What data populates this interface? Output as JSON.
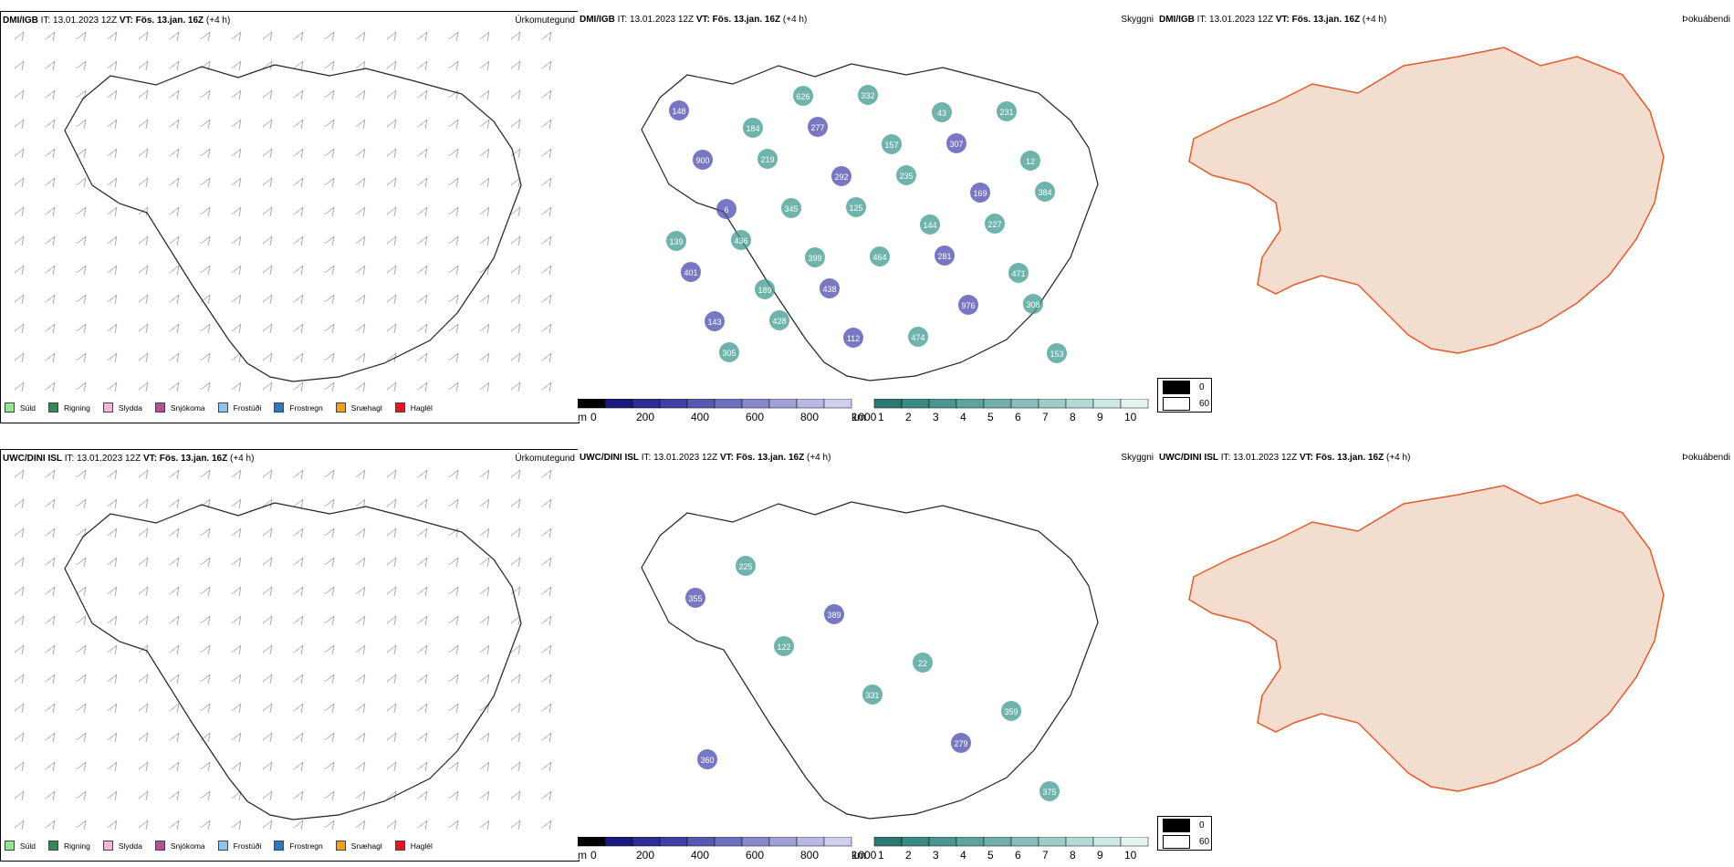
{
  "rows": [
    {
      "model": "DMI/IGB",
      "it_label": "IT:",
      "it_value": "13.01.2023 12Z",
      "vt_label": "VT:",
      "vt_value": "Fös. 13.jan. 16Z",
      "lead": "(+4 h)",
      "precip_title": "Úrkomutegund",
      "vis_title": "Skyggni",
      "fog_title": "Þokuábendi"
    },
    {
      "model": "UWC/DINI ISL",
      "it_label": "IT:",
      "it_value": "13.01.2023 12Z",
      "vt_label": "VT:",
      "vt_value": "Fös. 13.jan. 16Z",
      "lead": "(+4 h)",
      "precip_title": "Úrkomutegund",
      "vis_title": "Skyggni",
      "fog_title": "Þokuábendi"
    }
  ],
  "precip_legend": [
    {
      "label": "Súld",
      "color": "#8ee68e"
    },
    {
      "label": "Rigning",
      "color": "#2e8b57"
    },
    {
      "label": "Slydda",
      "color": "#f4b6d6"
    },
    {
      "label": "Snjókoma",
      "color": "#c2489b"
    },
    {
      "label": "Frostúði",
      "color": "#8fc4f0"
    },
    {
      "label": "Frostregn",
      "color": "#2f78c4"
    },
    {
      "label": "Snæhagl",
      "color": "#f0a020"
    },
    {
      "label": "Haglél",
      "color": "#e01818"
    }
  ],
  "height_bar": {
    "unit": "m",
    "ticks": [
      "0",
      "200",
      "400",
      "600",
      "800",
      "1000"
    ],
    "colors": [
      "#000000",
      "#1a1a7a",
      "#2e2e96",
      "#4040a8",
      "#5858b4",
      "#7070c0",
      "#8888cc",
      "#a0a0d8",
      "#b8b8e4",
      "#d0d0ee"
    ]
  },
  "km_bar": {
    "unit": "km",
    "ticks": [
      "1",
      "2",
      "3",
      "4",
      "5",
      "6",
      "7",
      "8",
      "9",
      "10"
    ],
    "colors": [
      "#2a7a72",
      "#3a8a82",
      "#4b978f",
      "#5ea49d",
      "#72b1ab",
      "#88bfb9",
      "#9ecdc8",
      "#b5dad6",
      "#cde8e5",
      "#e4f3f1"
    ]
  },
  "fog_legend": [
    {
      "label": "0",
      "color": "#000000"
    },
    {
      "label": "60",
      "color": "#ffffff"
    }
  ],
  "vis_labels_top": [
    "148",
    "219",
    "125",
    "281",
    "308",
    "305",
    "277",
    "235",
    "227",
    "401",
    "428",
    "332",
    "307",
    "384",
    "436",
    "438",
    "474",
    "231",
    "900",
    "345",
    "464",
    "976",
    "153",
    "184",
    "292",
    "144",
    "471",
    "143",
    "626",
    "157",
    "169",
    "139",
    "189",
    "112",
    "43",
    "12",
    "6",
    "399"
  ],
  "vis_labels_bottom": [
    "355",
    "122",
    "331",
    "279",
    "375",
    "225",
    "389",
    "22",
    "359",
    "360"
  ]
}
